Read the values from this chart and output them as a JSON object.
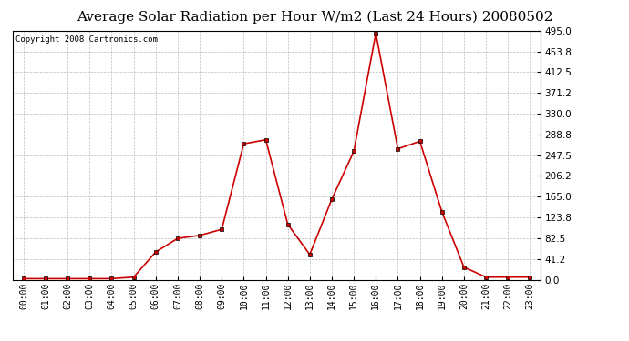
{
  "title": "Average Solar Radiation per Hour W/m2 (Last 24 Hours) 20080502",
  "copyright": "Copyright 2008 Cartronics.com",
  "hours": [
    0,
    1,
    2,
    3,
    4,
    5,
    6,
    7,
    8,
    9,
    10,
    11,
    12,
    13,
    14,
    15,
    16,
    17,
    18,
    19,
    20,
    21,
    22,
    23
  ],
  "x_labels": [
    "00:00",
    "01:00",
    "02:00",
    "03:00",
    "04:00",
    "05:00",
    "06:00",
    "07:00",
    "08:00",
    "09:00",
    "10:00",
    "11:00",
    "12:00",
    "13:00",
    "14:00",
    "15:00",
    "16:00",
    "17:00",
    "18:00",
    "19:00",
    "20:00",
    "21:00",
    "22:00",
    "23:00"
  ],
  "values": [
    2,
    2,
    2,
    2,
    2,
    5,
    55,
    82,
    88,
    100,
    270,
    278,
    110,
    50,
    160,
    255,
    490,
    260,
    275,
    135,
    25,
    5,
    5,
    5
  ],
  "line_color": "#cc0000",
  "marker_color": "#cc0000",
  "bg_color": "#ffffff",
  "grid_color": "#bbbbbb",
  "ymin": 0.0,
  "ymax": 495.0,
  "yticks": [
    0.0,
    41.2,
    82.5,
    123.8,
    165.0,
    206.2,
    247.5,
    288.8,
    330.0,
    371.2,
    412.5,
    453.8,
    495.0
  ],
  "title_fontsize": 11,
  "copyright_fontsize": 6.5,
  "tick_fontsize": 7,
  "ytick_fontsize": 7.5
}
